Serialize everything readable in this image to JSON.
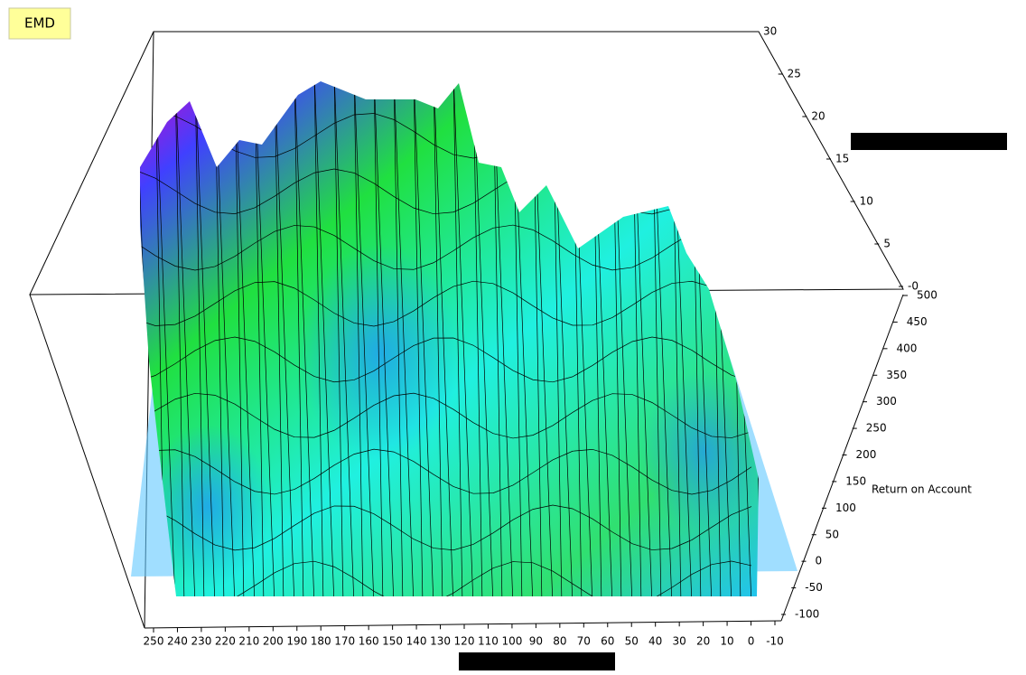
{
  "chart_data": {
    "type": "surface3d",
    "title": "EMD",
    "z_axis_label": "Return on Account",
    "xlim": [
      250,
      -10
    ],
    "xticks": [
      250,
      240,
      230,
      220,
      210,
      200,
      190,
      180,
      170,
      160,
      150,
      140,
      130,
      120,
      110,
      100,
      90,
      80,
      70,
      60,
      50,
      40,
      30,
      20,
      10,
      0,
      -10
    ],
    "ylim": [
      0,
      30
    ],
    "yticks": [
      {
        "value": 0,
        "label": "-0"
      },
      5,
      10,
      15,
      20,
      25,
      30
    ],
    "zlim": [
      -100,
      500
    ],
    "zticks": [
      -100,
      -50,
      0,
      50,
      100,
      150,
      200,
      250,
      300,
      350,
      400,
      450,
      500
    ]
  }
}
